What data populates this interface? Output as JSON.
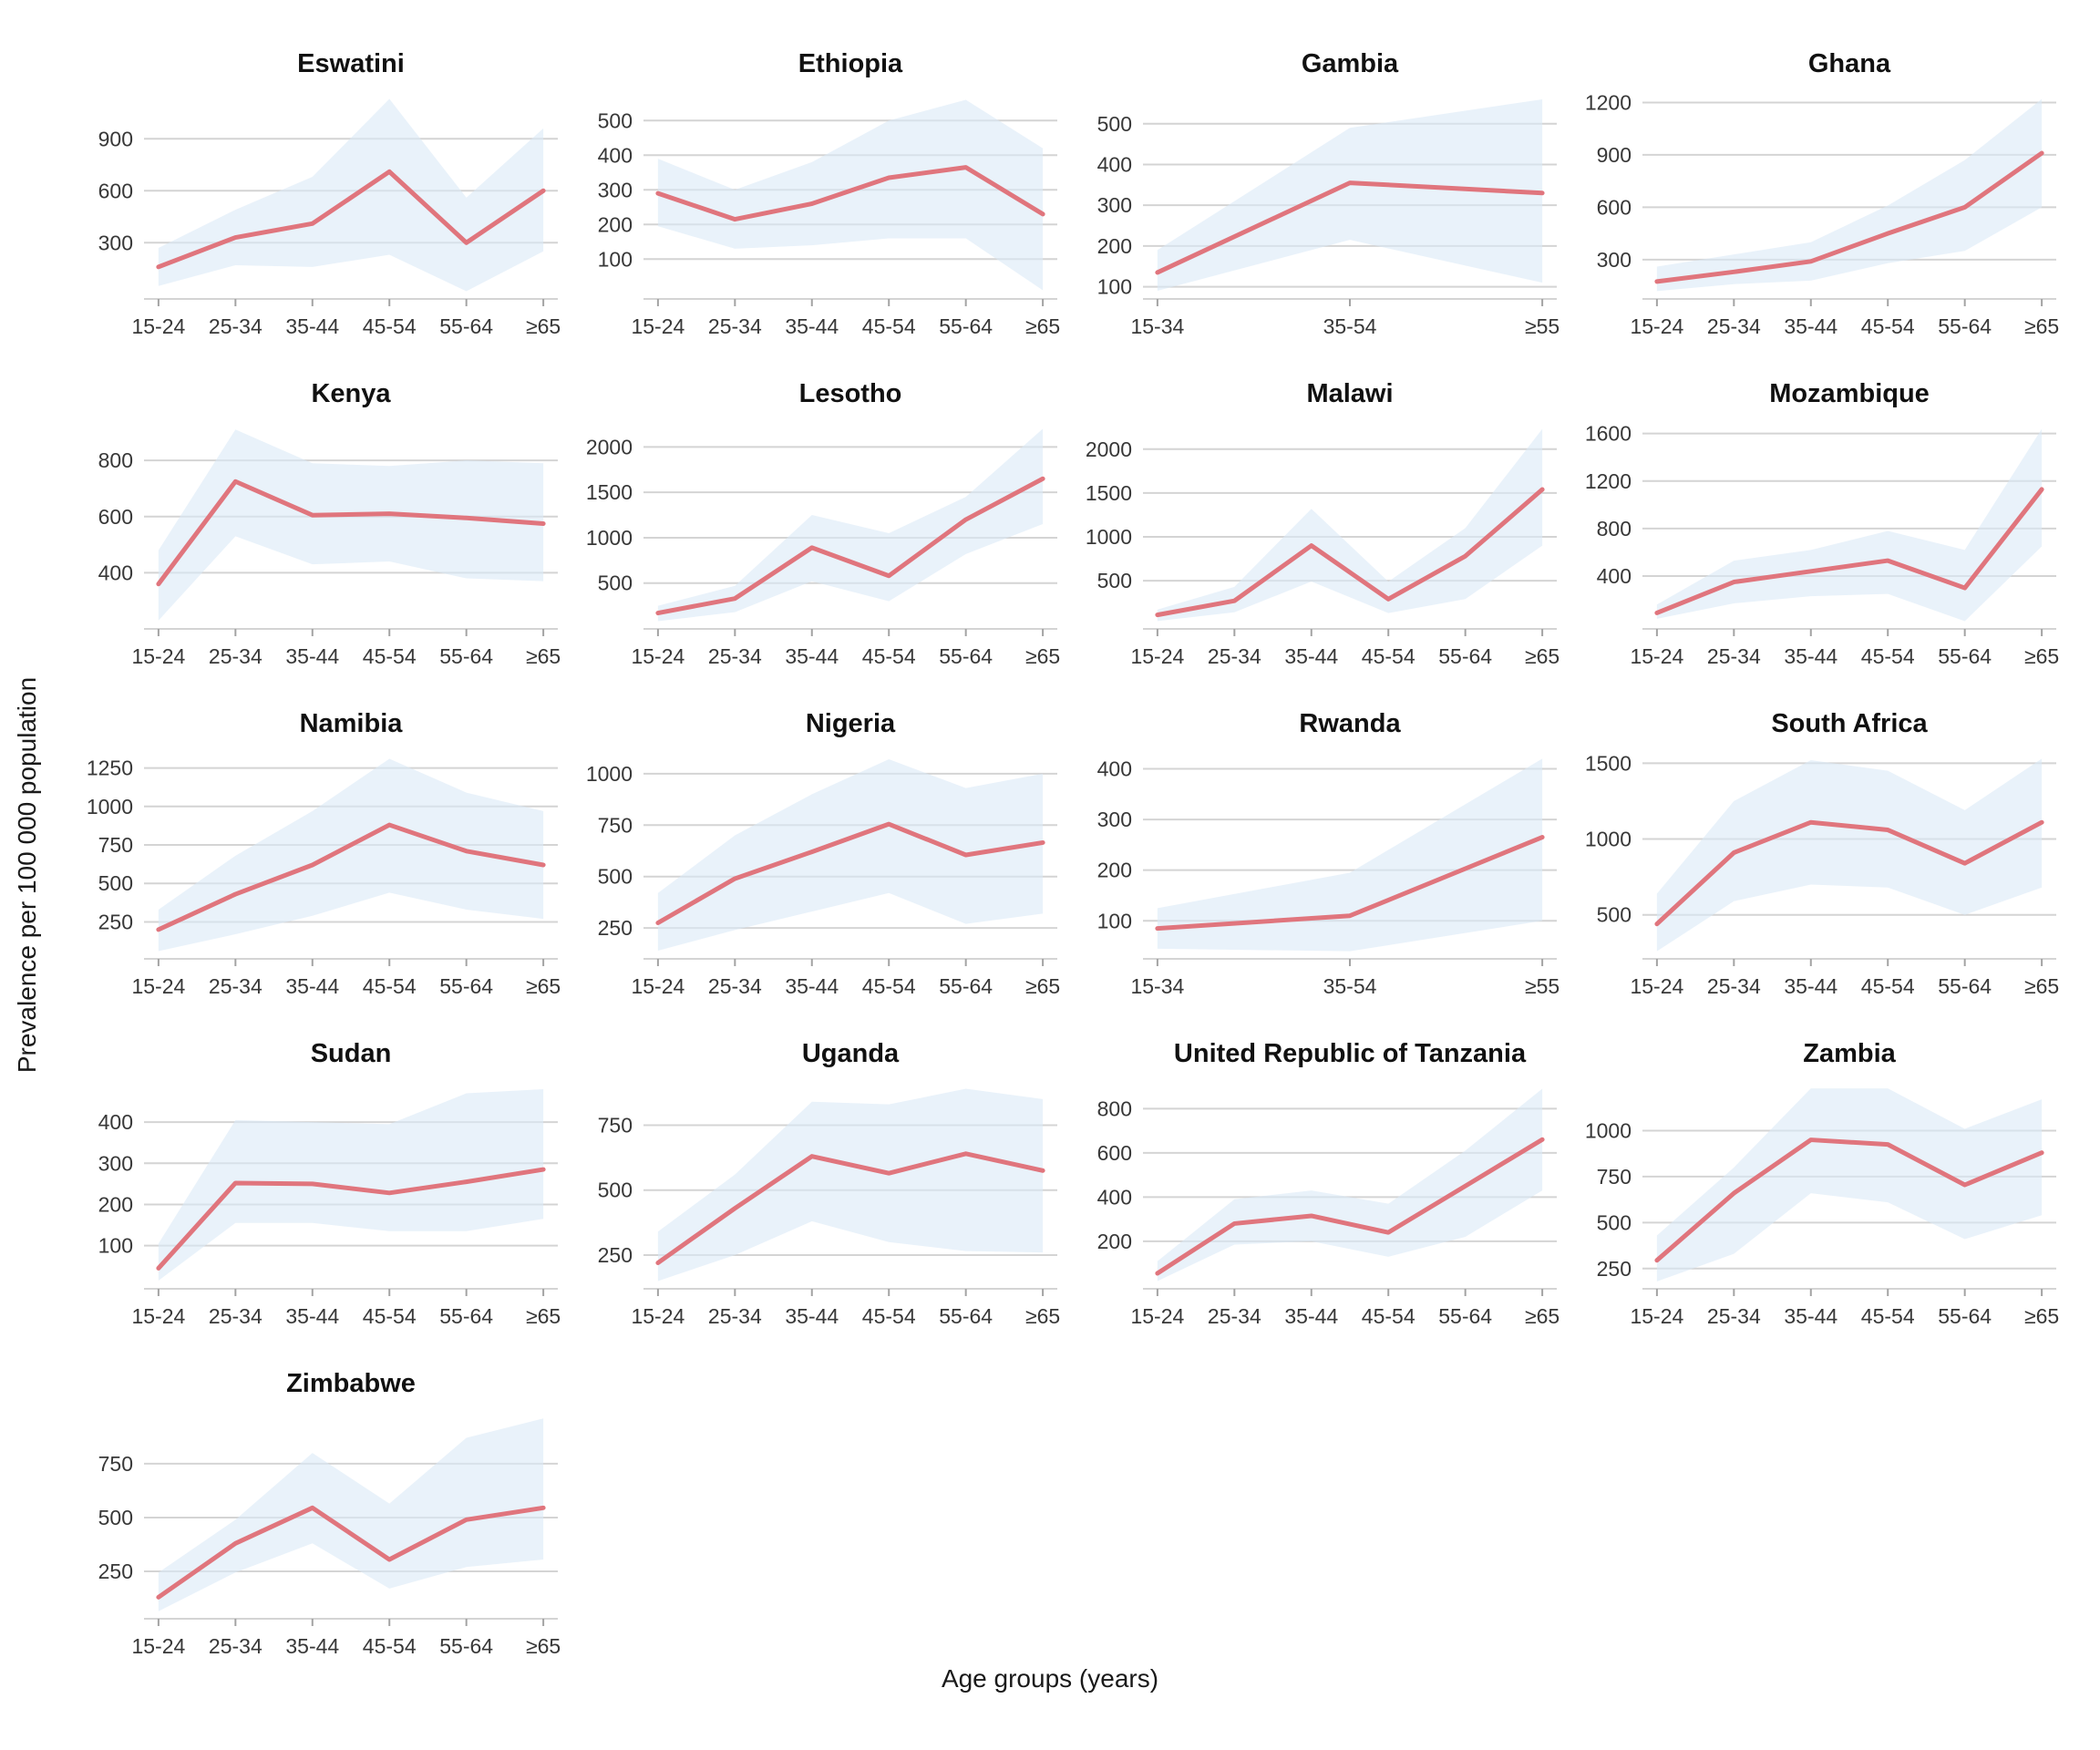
{
  "figure": {
    "ylabel": "Prevalence per 100 000 population",
    "xlabel": "Age groups (years)"
  },
  "style": {
    "line_color": "#e0757d",
    "band_color": "#daeaf7",
    "band_opacity": 0.6,
    "grid_color": "#d4d4d4",
    "axis_line_color": "#d4d4d4",
    "tick_mark_color": "#a3a3a3",
    "tick_text_color": "#383838",
    "title_color": "#111111",
    "background_color": "#ffffff"
  },
  "chart_data": [
    {
      "type": "line",
      "title": "Eswatini",
      "categories": [
        "15-24",
        "25-34",
        "35-44",
        "45-54",
        "55-64",
        "≥65"
      ],
      "series": [
        {
          "name": "prevalence",
          "values": [
            160,
            330,
            410,
            710,
            300,
            600
          ]
        }
      ],
      "band": {
        "name": "uncertainty-interval",
        "lower": [
          50,
          170,
          160,
          230,
          20,
          250
        ],
        "upper": [
          270,
          490,
          680,
          1130,
          560,
          960
        ]
      },
      "yticks": [
        300,
        600,
        900
      ],
      "ylim": [
        -25,
        1175
      ],
      "grid": true,
      "legend": "none"
    },
    {
      "type": "line",
      "title": "Ethiopia",
      "categories": [
        "15-24",
        "25-34",
        "35-44",
        "45-54",
        "55-64",
        "≥65"
      ],
      "series": [
        {
          "name": "prevalence",
          "values": [
            290,
            215,
            260,
            335,
            365,
            230
          ]
        }
      ],
      "band": {
        "name": "uncertainty-interval",
        "lower": [
          195,
          130,
          140,
          160,
          160,
          10
        ],
        "upper": [
          390,
          300,
          380,
          500,
          560,
          420
        ]
      },
      "yticks": [
        100,
        200,
        300,
        400,
        500
      ],
      "ylim": [
        -15,
        585
      ],
      "grid": true,
      "legend": "none"
    },
    {
      "type": "line",
      "title": "Gambia",
      "categories": [
        "15-34",
        "35-54",
        "≥55"
      ],
      "series": [
        {
          "name": "prevalence",
          "values": [
            135,
            355,
            330
          ]
        }
      ],
      "band": {
        "name": "uncertainty-interval",
        "lower": [
          90,
          215,
          110
        ],
        "upper": [
          190,
          490,
          560
        ]
      },
      "yticks": [
        100,
        200,
        300,
        400,
        500
      ],
      "ylim": [
        70,
        580
      ],
      "grid": true,
      "legend": "none"
    },
    {
      "type": "line",
      "title": "Ghana",
      "categories": [
        "15-24",
        "25-34",
        "35-44",
        "45-54",
        "55-64",
        "≥65"
      ],
      "series": [
        {
          "name": "prevalence",
          "values": [
            175,
            230,
            290,
            450,
            600,
            910
          ]
        }
      ],
      "band": {
        "name": "uncertainty-interval",
        "lower": [
          120,
          160,
          180,
          280,
          350,
          600
        ],
        "upper": [
          260,
          330,
          400,
          610,
          870,
          1220
        ]
      },
      "yticks": [
        300,
        600,
        900,
        1200
      ],
      "ylim": [
        75,
        1265
      ],
      "grid": true,
      "legend": "none"
    },
    {
      "type": "line",
      "title": "Kenya",
      "categories": [
        "15-24",
        "25-34",
        "35-44",
        "45-54",
        "55-64",
        "≥65"
      ],
      "series": [
        {
          "name": "prevalence",
          "values": [
            360,
            725,
            605,
            610,
            595,
            575
          ]
        }
      ],
      "band": {
        "name": "uncertainty-interval",
        "lower": [
          230,
          530,
          430,
          440,
          380,
          370
        ],
        "upper": [
          480,
          910,
          790,
          780,
          800,
          790
        ]
      },
      "yticks": [
        400,
        600,
        800
      ],
      "ylim": [
        200,
        940
      ],
      "grid": true,
      "legend": "none"
    },
    {
      "type": "line",
      "title": "Lesotho",
      "categories": [
        "15-24",
        "25-34",
        "35-44",
        "45-54",
        "55-64",
        "≥65"
      ],
      "series": [
        {
          "name": "prevalence",
          "values": [
            170,
            330,
            890,
            580,
            1200,
            1650
          ]
        }
      ],
      "band": {
        "name": "uncertainty-interval",
        "lower": [
          80,
          180,
          520,
          300,
          820,
          1150
        ],
        "upper": [
          250,
          470,
          1250,
          1050,
          1450,
          2200
        ]
      },
      "yticks": [
        500,
        1000,
        1500,
        2000
      ],
      "ylim": [
        -5,
        2285
      ],
      "grid": true,
      "legend": "none"
    },
    {
      "type": "line",
      "title": "Malawi",
      "categories": [
        "15-24",
        "25-34",
        "35-44",
        "45-54",
        "55-64",
        "≥65"
      ],
      "series": [
        {
          "name": "prevalence",
          "values": [
            110,
            270,
            900,
            290,
            780,
            1540
          ]
        }
      ],
      "band": {
        "name": "uncertainty-interval",
        "lower": [
          40,
          140,
          490,
          130,
          290,
          900
        ],
        "upper": [
          170,
          430,
          1320,
          490,
          1100,
          2230
        ]
      },
      "yticks": [
        500,
        1000,
        1500,
        2000
      ],
      "ylim": [
        -50,
        2320
      ],
      "grid": true,
      "legend": "none"
    },
    {
      "type": "line",
      "title": "Mozambique",
      "categories": [
        "15-24",
        "25-34",
        "35-44",
        "45-54",
        "55-64",
        "≥65"
      ],
      "series": [
        {
          "name": "prevalence",
          "values": [
            90,
            350,
            440,
            530,
            300,
            1130
          ]
        }
      ],
      "band": {
        "name": "uncertainty-interval",
        "lower": [
          40,
          170,
          230,
          250,
          20,
          650
        ],
        "upper": [
          160,
          530,
          620,
          780,
          620,
          1640
        ]
      },
      "yticks": [
        400,
        800,
        1200,
        1600
      ],
      "ylim": [
        -45,
        1705
      ],
      "grid": true,
      "legend": "none"
    },
    {
      "type": "line",
      "title": "Namibia",
      "categories": [
        "15-24",
        "25-34",
        "35-44",
        "45-54",
        "55-64",
        "≥65"
      ],
      "series": [
        {
          "name": "prevalence",
          "values": [
            200,
            430,
            620,
            880,
            710,
            620
          ]
        }
      ],
      "band": {
        "name": "uncertainty-interval",
        "lower": [
          60,
          170,
          290,
          440,
          330,
          270
        ],
        "upper": [
          330,
          680,
          970,
          1310,
          1090,
          970
        ]
      },
      "yticks": [
        250,
        500,
        750,
        1000,
        1250
      ],
      "ylim": [
        10,
        1360
      ],
      "grid": true,
      "legend": "none"
    },
    {
      "type": "line",
      "title": "Nigeria",
      "categories": [
        "15-24",
        "25-34",
        "35-44",
        "45-54",
        "55-64",
        "≥65"
      ],
      "series": [
        {
          "name": "prevalence",
          "values": [
            275,
            490,
            620,
            755,
            605,
            665
          ]
        }
      ],
      "band": {
        "name": "uncertainty-interval",
        "lower": [
          140,
          240,
          330,
          420,
          270,
          320
        ],
        "upper": [
          420,
          700,
          900,
          1070,
          930,
          1000
        ]
      },
      "yticks": [
        250,
        500,
        750,
        1000
      ],
      "ylim": [
        100,
        1110
      ],
      "grid": true,
      "legend": "none"
    },
    {
      "type": "line",
      "title": "Rwanda",
      "categories": [
        "15-34",
        "35-54",
        "≥55"
      ],
      "series": [
        {
          "name": "prevalence",
          "values": [
            85,
            110,
            265
          ]
        }
      ],
      "band": {
        "name": "uncertainty-interval",
        "lower": [
          45,
          40,
          100
        ],
        "upper": [
          125,
          195,
          420
        ]
      },
      "yticks": [
        100,
        200,
        300,
        400
      ],
      "ylim": [
        25,
        435
      ],
      "grid": true,
      "legend": "none"
    },
    {
      "type": "line",
      "title": "South Africa",
      "categories": [
        "15-24",
        "25-34",
        "35-44",
        "45-54",
        "55-64",
        "≥65"
      ],
      "series": [
        {
          "name": "prevalence",
          "values": [
            440,
            910,
            1110,
            1060,
            840,
            1110
          ]
        }
      ],
      "band": {
        "name": "uncertainty-interval",
        "lower": [
          260,
          590,
          700,
          680,
          500,
          680
        ],
        "upper": [
          640,
          1250,
          1520,
          1450,
          1190,
          1530
        ]
      },
      "yticks": [
        500,
        1000,
        1500
      ],
      "ylim": [
        210,
        1580
      ],
      "grid": true,
      "legend": "none"
    },
    {
      "type": "line",
      "title": "Sudan",
      "categories": [
        "15-24",
        "25-34",
        "35-44",
        "45-54",
        "55-64",
        "≥65"
      ],
      "series": [
        {
          "name": "prevalence",
          "values": [
            45,
            252,
            250,
            228,
            255,
            285
          ]
        }
      ],
      "band": {
        "name": "uncertainty-interval",
        "lower": [
          15,
          155,
          155,
          135,
          135,
          165
        ],
        "upper": [
          105,
          405,
          400,
          395,
          470,
          480
        ]
      },
      "yticks": [
        100,
        200,
        300,
        400
      ],
      "ylim": [
        -5,
        500
      ],
      "grid": true,
      "legend": "none"
    },
    {
      "type": "line",
      "title": "Uganda",
      "categories": [
        "15-24",
        "25-34",
        "35-44",
        "45-54",
        "55-64",
        "≥65"
      ],
      "series": [
        {
          "name": "prevalence",
          "values": [
            220,
            430,
            630,
            565,
            640,
            575
          ]
        }
      ],
      "band": {
        "name": "uncertainty-interval",
        "lower": [
          150,
          250,
          380,
          300,
          265,
          260
        ],
        "upper": [
          340,
          560,
          840,
          830,
          890,
          850
        ]
      },
      "yticks": [
        250,
        500,
        750
      ],
      "ylim": [
        120,
        920
      ],
      "grid": true,
      "legend": "none"
    },
    {
      "type": "line",
      "title": "United Republic of Tanzania",
      "categories": [
        "15-24",
        "25-34",
        "35-44",
        "45-54",
        "55-64",
        "≥65"
      ],
      "series": [
        {
          "name": "prevalence",
          "values": [
            55,
            280,
            315,
            240,
            450,
            660
          ]
        }
      ],
      "band": {
        "name": "uncertainty-interval",
        "lower": [
          20,
          185,
          200,
          130,
          220,
          430
        ],
        "upper": [
          110,
          390,
          430,
          370,
          610,
          890
        ]
      },
      "yticks": [
        200,
        400,
        600,
        800
      ],
      "ylim": [
        -15,
        925
      ],
      "grid": true,
      "legend": "none"
    },
    {
      "type": "line",
      "title": "Zambia",
      "categories": [
        "15-24",
        "25-34",
        "35-44",
        "45-54",
        "55-64",
        "≥65"
      ],
      "series": [
        {
          "name": "prevalence",
          "values": [
            295,
            660,
            950,
            925,
            705,
            880
          ]
        }
      ],
      "band": {
        "name": "uncertainty-interval",
        "lower": [
          180,
          330,
          660,
          610,
          410,
          540
        ],
        "upper": [
          430,
          800,
          1230,
          1230,
          1010,
          1170
        ]
      },
      "yticks": [
        250,
        500,
        750,
        1000
      ],
      "ylim": [
        140,
        1270
      ],
      "grid": true,
      "legend": "none"
    },
    {
      "type": "line",
      "title": "Zimbabwe",
      "categories": [
        "15-24",
        "25-34",
        "35-44",
        "45-54",
        "55-64",
        "≥65"
      ],
      "series": [
        {
          "name": "prevalence",
          "values": [
            130,
            380,
            545,
            305,
            490,
            545
          ]
        }
      ],
      "band": {
        "name": "uncertainty-interval",
        "lower": [
          65,
          245,
          380,
          170,
          270,
          305
        ],
        "upper": [
          245,
          490,
          800,
          565,
          870,
          960
        ]
      },
      "yticks": [
        250,
        500,
        750
      ],
      "ylim": [
        30,
        995
      ],
      "grid": true,
      "legend": "none"
    }
  ]
}
